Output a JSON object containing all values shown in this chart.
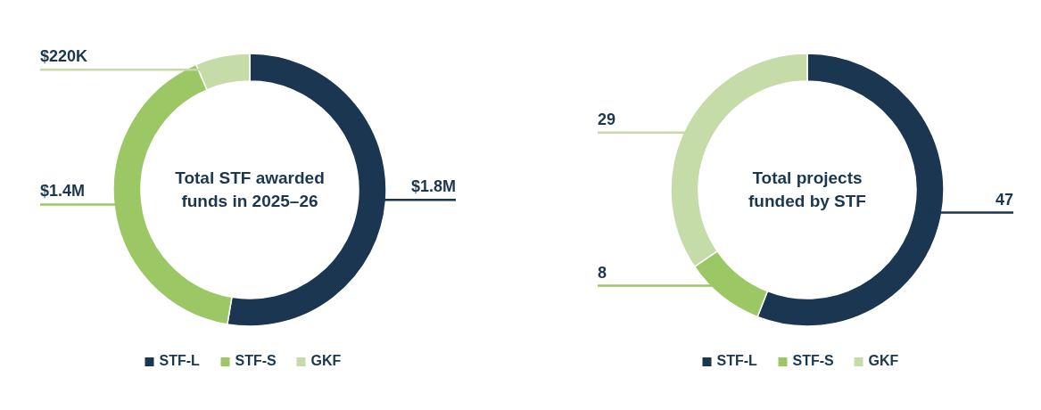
{
  "chart_data": [
    {
      "type": "donut",
      "title": "Total STF awarded funds in 2025–26",
      "categories": [
        "STF-L",
        "STF-S",
        "GKF"
      ],
      "values": [
        1800000,
        1400000,
        220000
      ],
      "value_labels": [
        "$1.8M",
        "$1.4M",
        "$220K"
      ],
      "colors": [
        "#1a3650",
        "#9bc864",
        "#c5dca8"
      ],
      "legend": "bottom"
    },
    {
      "type": "donut",
      "title": "Total projects funded by STF",
      "categories": [
        "STF-L",
        "STF-S",
        "GKF"
      ],
      "values": [
        47,
        8,
        29
      ],
      "data_labels": true,
      "colors": [
        "#1a3650",
        "#9bc864",
        "#c5dca8"
      ],
      "legend": "bottom"
    }
  ]
}
